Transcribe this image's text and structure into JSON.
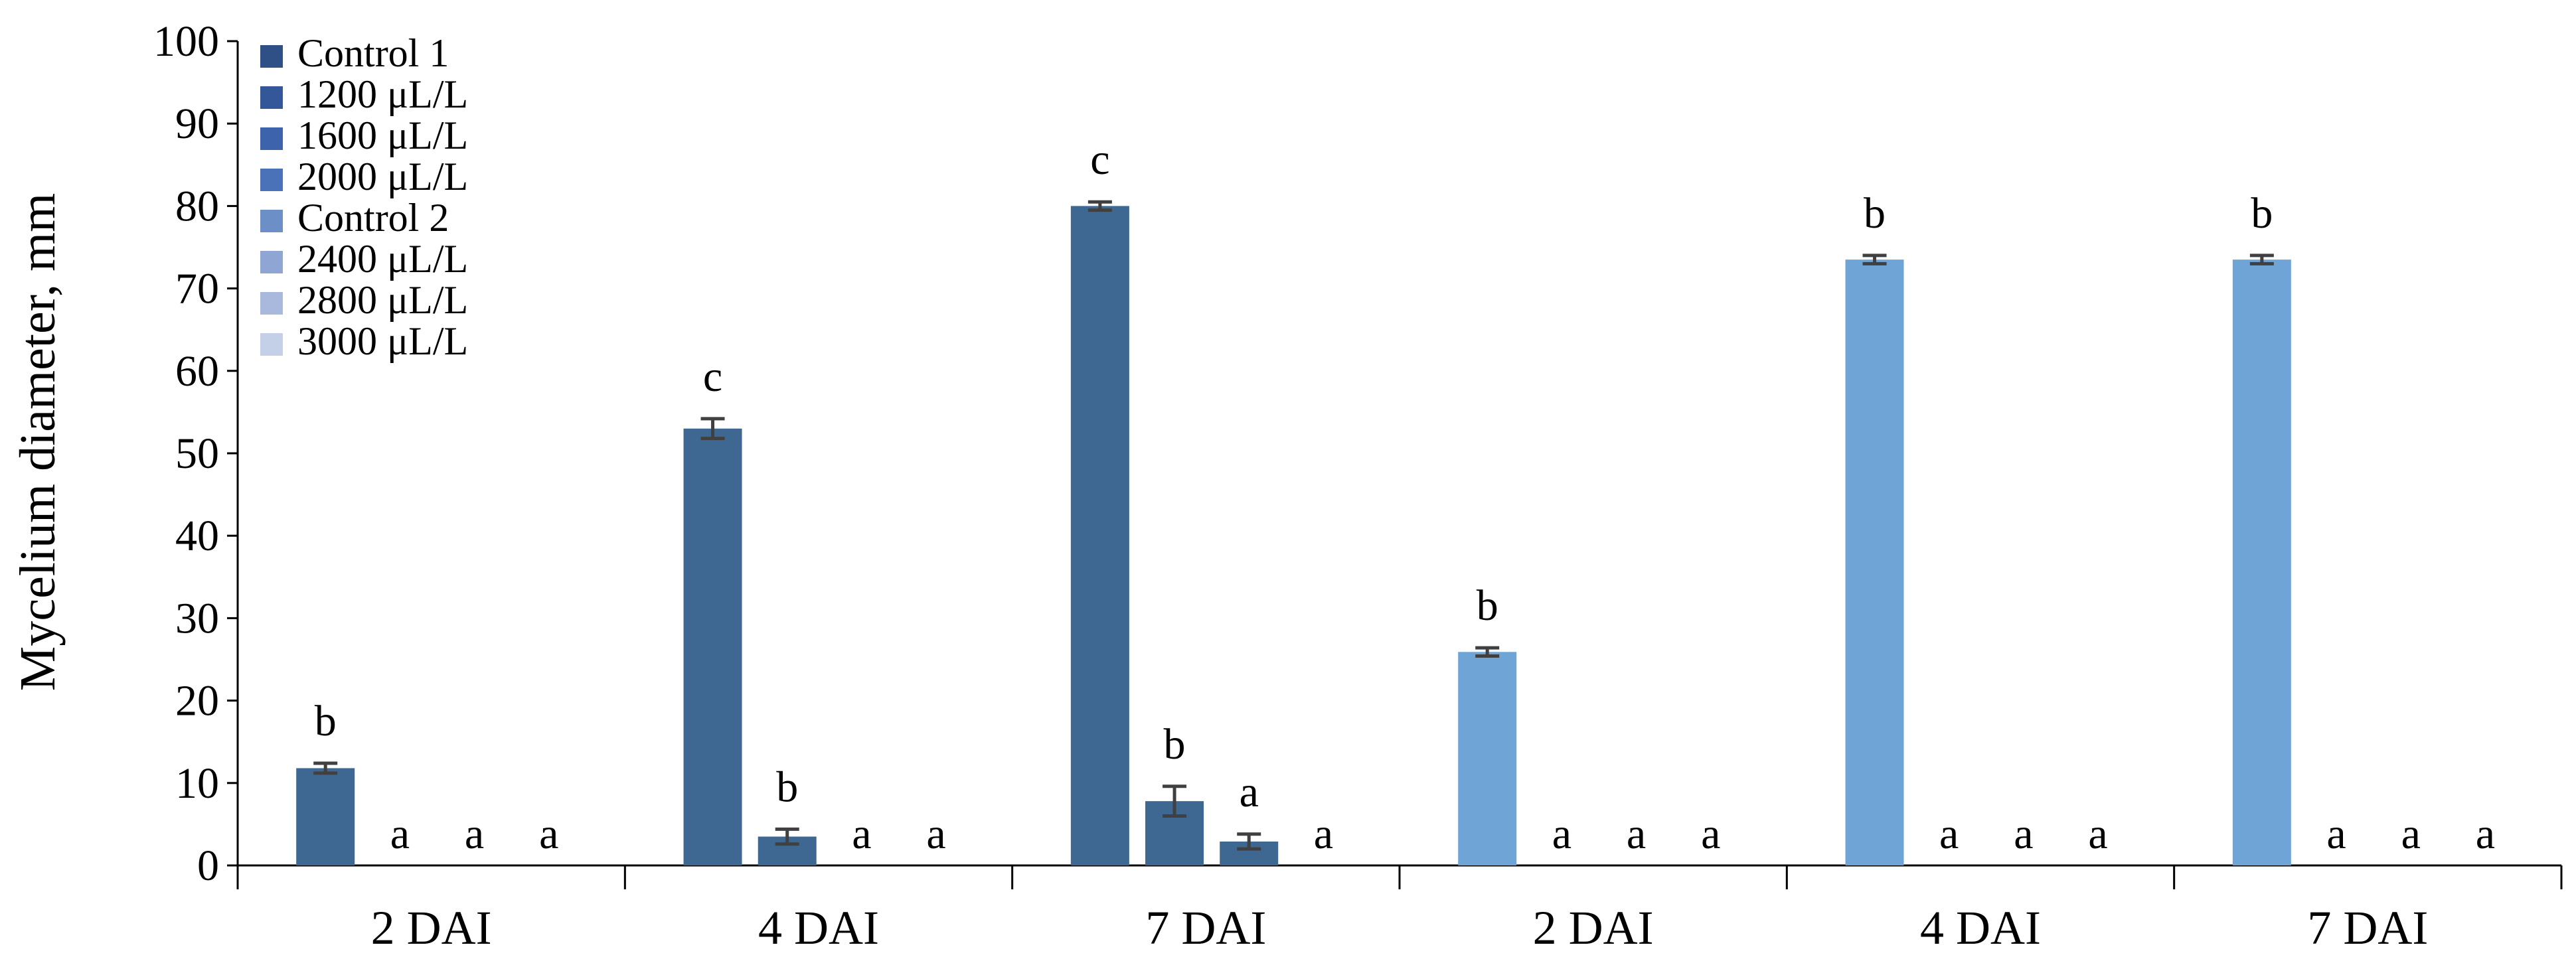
{
  "chart_data": {
    "type": "bar",
    "title": "",
    "xlabel": "",
    "ylabel": "Mycelium diameter, mm",
    "ylim": [
      0,
      100
    ],
    "yticks": [
      0,
      10,
      20,
      30,
      40,
      50,
      60,
      70,
      80,
      90,
      100
    ],
    "grid": false,
    "legend_position": "top-left",
    "groups": [
      {
        "categories": [
          "2 DAI",
          "4 DAI",
          "7 DAI"
        ],
        "series": [
          {
            "name": "Control 1",
            "values": [
              11.8,
              53.0,
              80.0
            ],
            "errors": [
              0.6,
              1.2,
              0.5
            ],
            "labels": [
              "b",
              "c",
              "c"
            ]
          },
          {
            "name": "1200 μL/L",
            "values": [
              0,
              3.5,
              7.8
            ],
            "errors": [
              0,
              0.9,
              1.8
            ],
            "labels": [
              "a",
              "b",
              "b"
            ]
          },
          {
            "name": "1600 μL/L",
            "values": [
              0,
              0,
              2.9
            ],
            "errors": [
              0,
              0,
              0.9
            ],
            "labels": [
              "a",
              "a",
              "a"
            ]
          },
          {
            "name": "2000 μL/L",
            "values": [
              0,
              0,
              0
            ],
            "errors": [
              0,
              0,
              0
            ],
            "labels": [
              "a",
              "a",
              "a"
            ]
          }
        ]
      },
      {
        "categories": [
          "2 DAI",
          "4 DAI",
          "7 DAI"
        ],
        "series": [
          {
            "name": "Control 2",
            "values": [
              25.9,
              73.5,
              73.5
            ],
            "errors": [
              0.5,
              0.5,
              0.5
            ],
            "labels": [
              "b",
              "b",
              "b"
            ]
          },
          {
            "name": "2400 μL/L",
            "values": [
              0,
              0,
              0
            ],
            "errors": [
              0,
              0,
              0
            ],
            "labels": [
              "a",
              "a",
              "a"
            ]
          },
          {
            "name": "2800 μL/L",
            "values": [
              0,
              0,
              0
            ],
            "errors": [
              0,
              0,
              0
            ],
            "labels": [
              "a",
              "a",
              "a"
            ]
          },
          {
            "name": "3000 μL/L",
            "values": [
              0,
              0,
              0
            ],
            "errors": [
              0,
              0,
              0
            ],
            "labels": [
              "a",
              "a",
              "a"
            ]
          }
        ]
      }
    ],
    "legend": [
      {
        "name": "Control 1",
        "color": "#2f4f87"
      },
      {
        "name": "1200 μL/L",
        "color": "#34579a"
      },
      {
        "name": "1600 μL/L",
        "color": "#3c63ab"
      },
      {
        "name": "2000 μL/L",
        "color": "#4a72b8"
      },
      {
        "name": "Control 2",
        "color": "#6d8fc8"
      },
      {
        "name": "2400 μL/L",
        "color": "#8fa6d4"
      },
      {
        "name": "2800 μL/L",
        "color": "#a9b9de"
      },
      {
        "name": "3000 μL/L",
        "color": "#c4cfe8"
      }
    ],
    "bar_colors": {
      "group1": "#3e6891",
      "group2": "#6fa4d6",
      "error_bar": "#404040"
    }
  }
}
